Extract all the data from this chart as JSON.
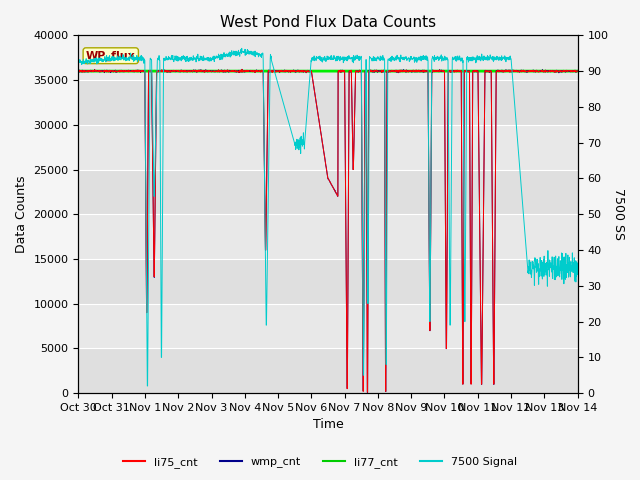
{
  "title": "West Pond Flux Data Counts",
  "xlabel": "Time",
  "ylabel_left": "Data Counts",
  "ylabel_right": "7500 SS",
  "ylim_left": [
    0,
    40000
  ],
  "ylim_right": [
    0,
    100
  ],
  "x_tick_labels": [
    "Oct 30",
    "Oct 31",
    "Nov 1",
    "Nov 2",
    "Nov 3",
    "Nov 4",
    "Nov 5",
    "Nov 6",
    "Nov 7",
    "Nov 8",
    "Nov 9",
    "Nov 10",
    "Nov 11",
    "Nov 12",
    "Nov 13",
    "Nov 14"
  ],
  "legend_entries": [
    "li75_cnt",
    "wmp_cnt",
    "li77_cnt",
    "7500 Signal"
  ],
  "legend_colors": [
    "#ff0000",
    "#00008b",
    "#00cc00",
    "#00cccc"
  ],
  "wp_flux_box_color": "#ffffcc",
  "wp_flux_text_color": "#990000",
  "background_color": "#e8e8e8",
  "fig_background": "#f5f5f5",
  "li77_value": 36000,
  "li77_color": "#00ee00",
  "signal_color": "#00cccc",
  "li75_color": "#ff0000",
  "wmp_color": "#00008b",
  "title_fontsize": 11,
  "axis_label_fontsize": 9,
  "tick_fontsize": 8,
  "legend_fontsize": 8,
  "grid_color": "#ffffff",
  "right_yticks": [
    0,
    10,
    20,
    30,
    40,
    50,
    60,
    70,
    80,
    90,
    100
  ],
  "left_yticks": [
    0,
    5000,
    10000,
    15000,
    20000,
    25000,
    30000,
    35000,
    40000
  ]
}
